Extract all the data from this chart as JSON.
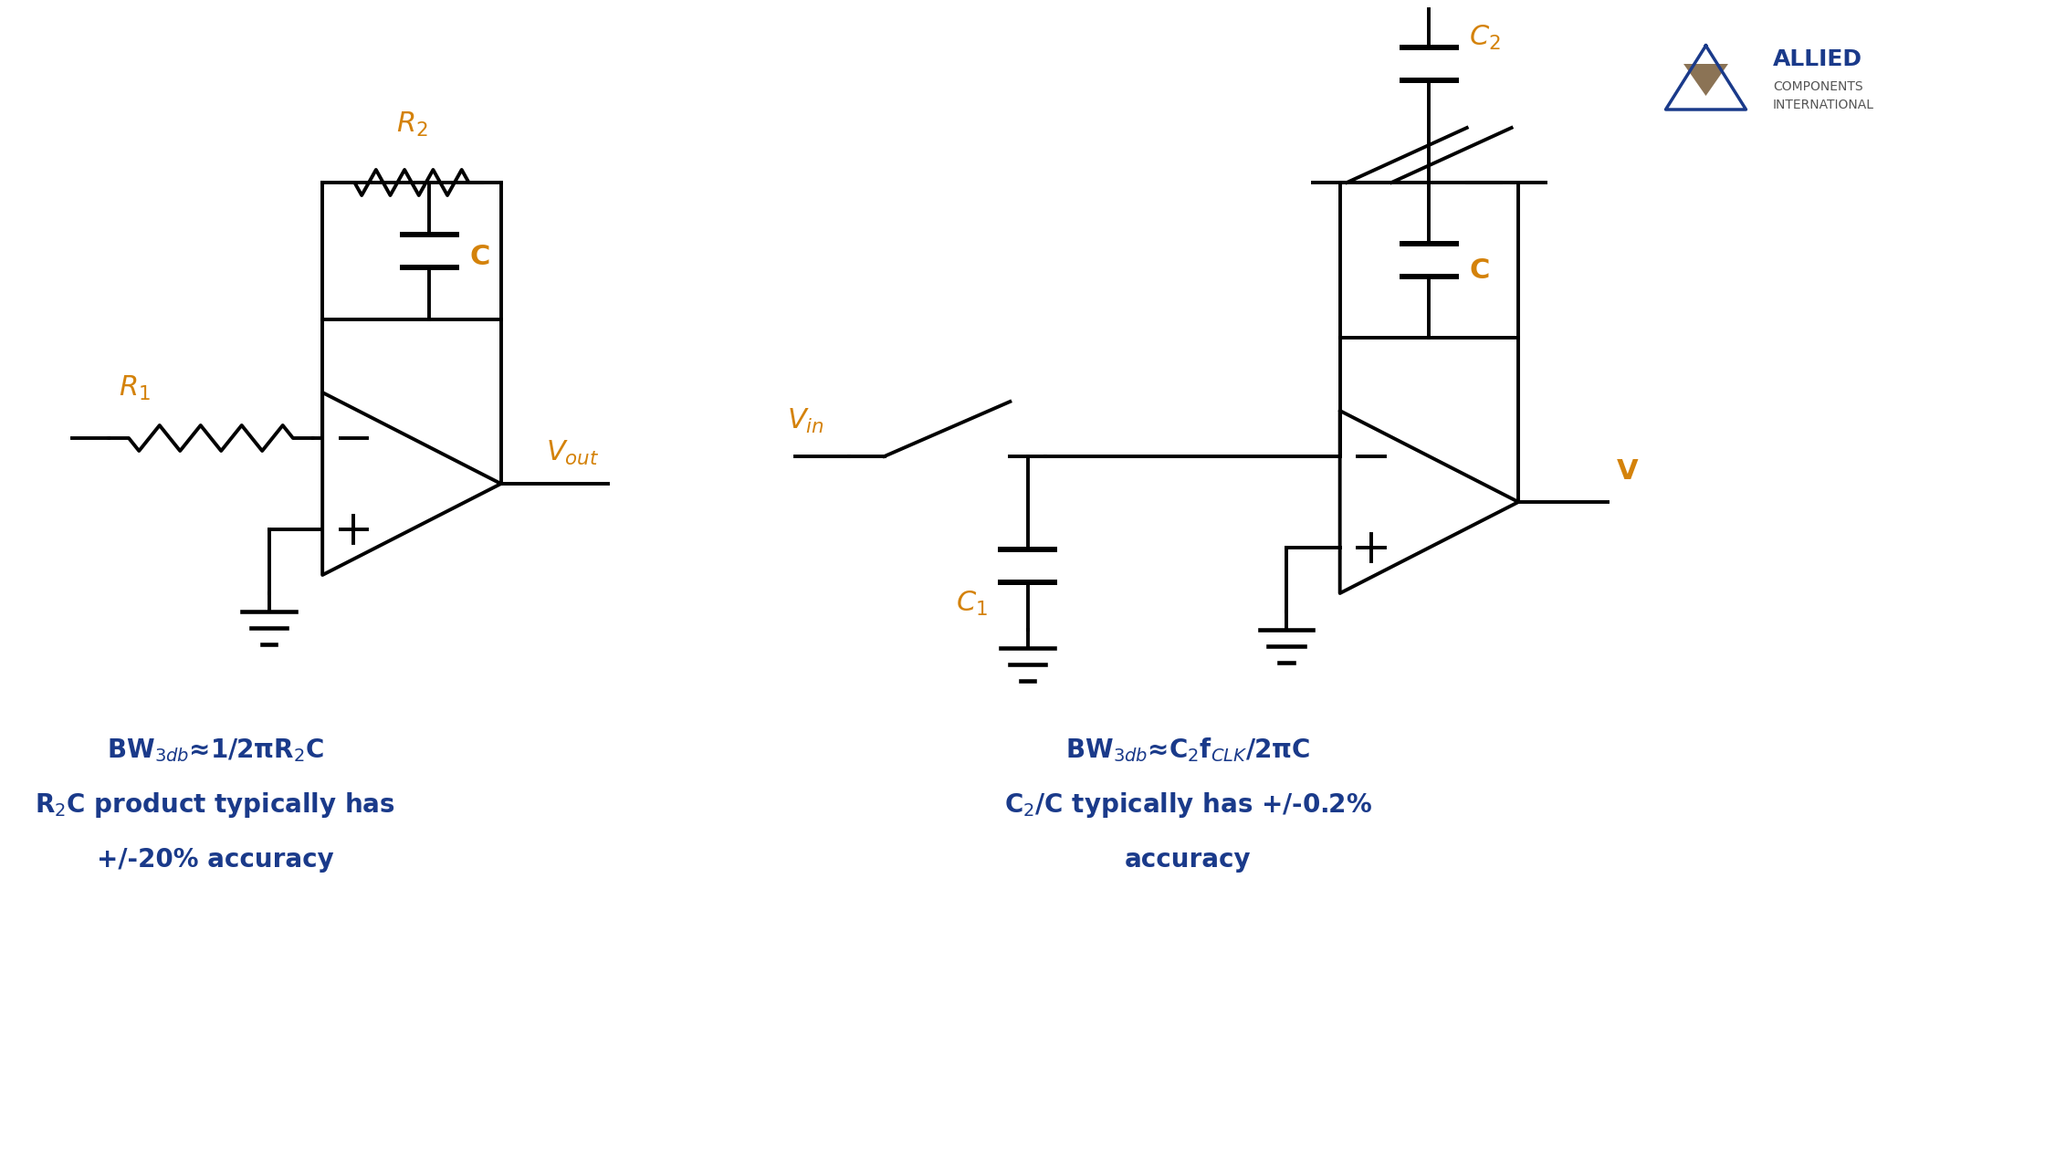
{
  "bg_color": "#ffffff",
  "line_color": "#000000",
  "label_color": "#d4820a",
  "text_color": "#1a3a8a",
  "fig_width": 22.4,
  "fig_height": 12.6,
  "lw": 2.8,
  "left_bw_formula": "BW$_{3db}$≈1/2πR$_2$C",
  "left_desc1": "R$_2$C product typically has",
  "left_desc2": "+/-20% accuracy",
  "right_bw_formula": "BW$_{3db}$≈C$_2$f$_{CLK}$/2πC",
  "right_desc1": "C$_2$/C typically has +/-0.2%",
  "right_desc2": "accuracy",
  "allied_text1": "ALLIED",
  "allied_text2": "COMPONENTS",
  "allied_text3": "INTERNATIONAL"
}
